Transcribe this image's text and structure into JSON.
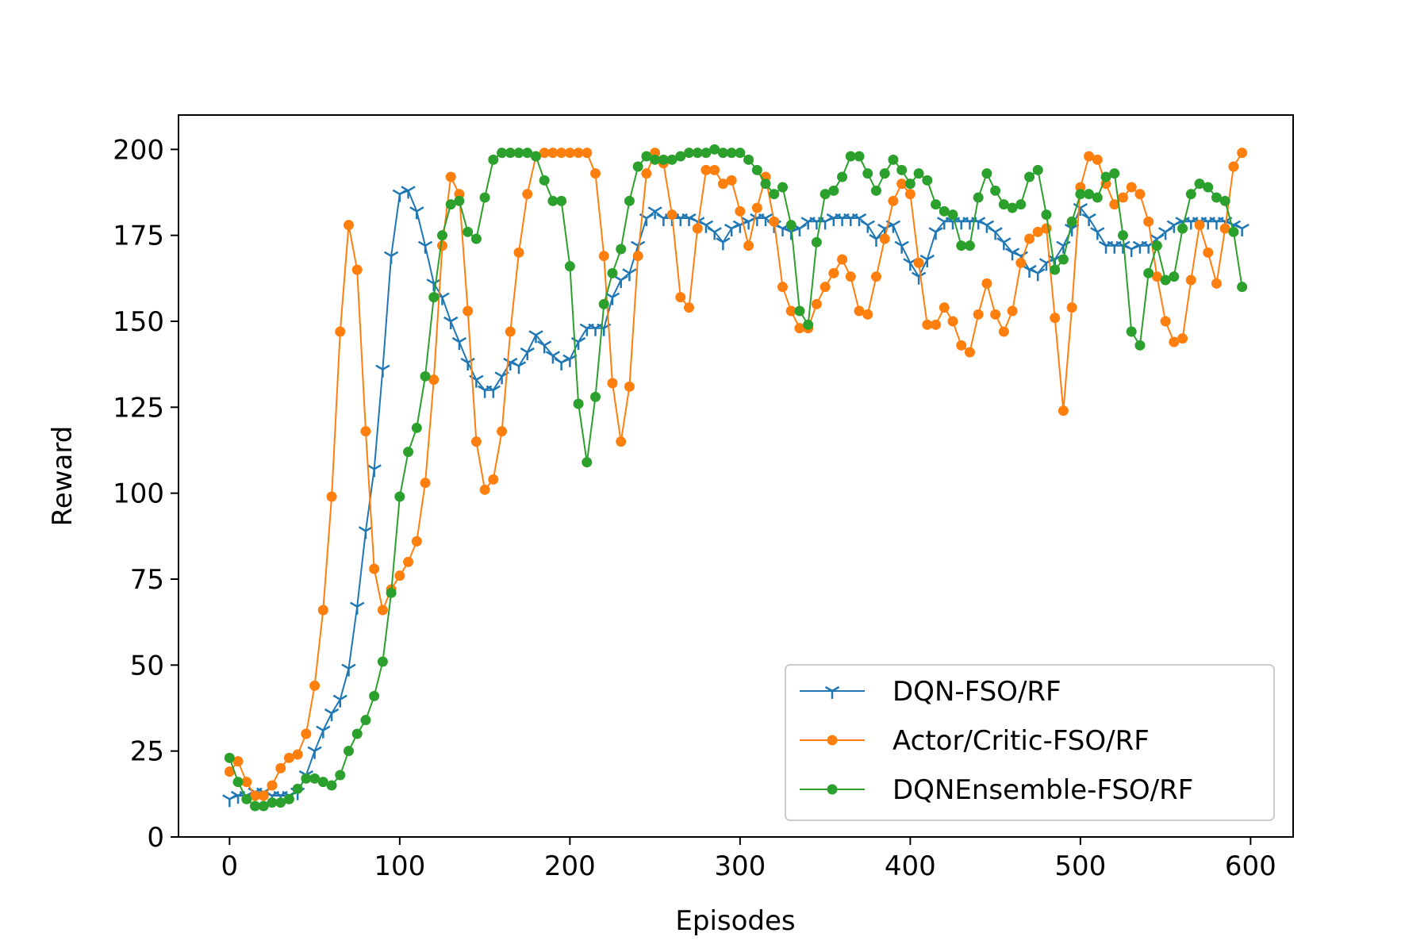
{
  "chart_data": {
    "type": "line",
    "title": "",
    "xlabel": "Episodes",
    "ylabel": "Reward",
    "xlim": [
      -30,
      625
    ],
    "ylim": [
      0,
      210
    ],
    "xticks": [
      0,
      100,
      200,
      300,
      400,
      500,
      600
    ],
    "yticks": [
      0,
      25,
      50,
      75,
      100,
      125,
      150,
      175,
      200
    ],
    "grid": false,
    "legend_position": "lower-right",
    "x": [
      0,
      5,
      10,
      15,
      20,
      25,
      30,
      35,
      40,
      45,
      50,
      55,
      60,
      65,
      70,
      75,
      80,
      85,
      90,
      95,
      100,
      105,
      110,
      115,
      120,
      125,
      130,
      135,
      140,
      145,
      150,
      155,
      160,
      165,
      170,
      175,
      180,
      185,
      190,
      195,
      200,
      205,
      210,
      215,
      220,
      225,
      230,
      235,
      240,
      245,
      250,
      255,
      260,
      265,
      270,
      275,
      280,
      285,
      290,
      295,
      300,
      305,
      310,
      315,
      320,
      325,
      330,
      335,
      340,
      345,
      350,
      355,
      360,
      365,
      370,
      375,
      380,
      385,
      390,
      395,
      400,
      405,
      410,
      415,
      420,
      425,
      430,
      435,
      440,
      445,
      450,
      455,
      460,
      465,
      470,
      475,
      480,
      485,
      490,
      495,
      500,
      505,
      510,
      515,
      520,
      525,
      530,
      535,
      540,
      545,
      550,
      555,
      560,
      565,
      570,
      575,
      580,
      585,
      590,
      595
    ],
    "series": [
      {
        "name": "DQN-FSO/RF",
        "color": "#1f77b4",
        "marker": "tri-down",
        "values": [
          11,
          12,
          12,
          13,
          13,
          12,
          12,
          12,
          13,
          18,
          25,
          31,
          36,
          40,
          49,
          67,
          89,
          107,
          136,
          169,
          187,
          188,
          182,
          172,
          161,
          157,
          150,
          144,
          138,
          133,
          130,
          130,
          134,
          138,
          137,
          141,
          146,
          143,
          140,
          138,
          139,
          144,
          148,
          148,
          148,
          157,
          162,
          164,
          172,
          180,
          182,
          180,
          180,
          180,
          180,
          179,
          178,
          176,
          173,
          177,
          178,
          179,
          180,
          180,
          178,
          177,
          176,
          177,
          179,
          179,
          179,
          180,
          180,
          180,
          180,
          178,
          174,
          177,
          178,
          172,
          167,
          163,
          168,
          176,
          179,
          179,
          179,
          179,
          179,
          178,
          176,
          173,
          170,
          169,
          165,
          164,
          167,
          168,
          172,
          177,
          183,
          180,
          176,
          172,
          172,
          172,
          171,
          172,
          172,
          174,
          176,
          178,
          179,
          179,
          179,
          179,
          179,
          179,
          178,
          177
        ]
      },
      {
        "name": "Actor/Critic-FSO/RF",
        "color": "#ff7f0e",
        "marker": "circle",
        "values": [
          19,
          22,
          16,
          12,
          12,
          15,
          20,
          23,
          24,
          30,
          44,
          66,
          99,
          147,
          178,
          165,
          118,
          78,
          66,
          72,
          76,
          80,
          86,
          103,
          133,
          172,
          192,
          187,
          153,
          115,
          101,
          104,
          118,
          147,
          170,
          187,
          198,
          199,
          199,
          199,
          199,
          199,
          199,
          193,
          169,
          132,
          115,
          131,
          169,
          193,
          199,
          196,
          181,
          157,
          154,
          177,
          194,
          194,
          190,
          191,
          182,
          172,
          183,
          192,
          179,
          160,
          153,
          148,
          148,
          155,
          160,
          164,
          168,
          163,
          153,
          152,
          163,
          174,
          185,
          190,
          187,
          167,
          149,
          149,
          154,
          150,
          143,
          141,
          152,
          161,
          152,
          147,
          153,
          167,
          174,
          176,
          177,
          151,
          124,
          154,
          189,
          198,
          197,
          190,
          184,
          186,
          189,
          187,
          179,
          163,
          150,
          144,
          145,
          162,
          178,
          170,
          161,
          177,
          195,
          199
        ]
      },
      {
        "name": "DQNEnsemble-FSO/RF",
        "color": "#2ca02c",
        "marker": "circle",
        "values": [
          23,
          16,
          11,
          9,
          9,
          10,
          10,
          11,
          14,
          17,
          17,
          16,
          15,
          18,
          25,
          30,
          34,
          41,
          51,
          71,
          99,
          112,
          119,
          134,
          157,
          175,
          184,
          185,
          176,
          174,
          186,
          197,
          199,
          199,
          199,
          199,
          198,
          191,
          185,
          185,
          166,
          126,
          109,
          128,
          155,
          164,
          171,
          185,
          195,
          198,
          197,
          197,
          197,
          198,
          199,
          199,
          199,
          200,
          199,
          199,
          199,
          197,
          194,
          190,
          187,
          189,
          178,
          153,
          149,
          173,
          187,
          188,
          192,
          198,
          198,
          193,
          188,
          193,
          197,
          194,
          190,
          193,
          191,
          184,
          182,
          181,
          172,
          172,
          186,
          193,
          188,
          184,
          183,
          184,
          192,
          194,
          181,
          165,
          168,
          179,
          187,
          187,
          186,
          192,
          193,
          175,
          147,
          143,
          164,
          172,
          162,
          163,
          177,
          187,
          190,
          189,
          186,
          185,
          176,
          160
        ]
      }
    ]
  }
}
